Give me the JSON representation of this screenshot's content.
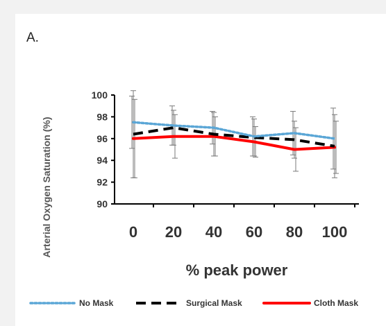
{
  "header_fragment": "",
  "panel_label": "A.",
  "chart_data": {
    "type": "line",
    "x": [
      0,
      20,
      40,
      60,
      80,
      100
    ],
    "xticks": [
      "0",
      "20",
      "40",
      "60",
      "80",
      "100"
    ],
    "yticks": [
      "90",
      "92",
      "94",
      "96",
      "98",
      "100"
    ],
    "xlabel": "% peak power",
    "ylabel": "Arterial Oxygen Saturation (%)",
    "ylim": [
      90,
      100
    ],
    "grid": false,
    "legend_position": "bottom",
    "series": [
      {
        "name": "No Mask",
        "color": "#5aa6d6",
        "style": "dotted",
        "values": [
          97.5,
          97.2,
          97.0,
          96.2,
          96.5,
          96.0
        ],
        "error": [
          2.4,
          1.8,
          1.5,
          1.8,
          2.0,
          2.8
        ]
      },
      {
        "name": "Surgical Mask",
        "color": "#000000",
        "style": "dashed",
        "values": [
          96.4,
          97.0,
          96.4,
          96.1,
          95.9,
          95.3
        ],
        "error": [
          4.0,
          1.6,
          2.0,
          1.7,
          1.7,
          2.9
        ]
      },
      {
        "name": "Cloth Mask",
        "color": "#ff0000",
        "style": "solid",
        "values": [
          96.0,
          96.2,
          96.2,
          95.7,
          95.0,
          95.2
        ],
        "error": [
          3.6,
          2.0,
          1.8,
          1.4,
          2.0,
          2.4
        ]
      }
    ]
  }
}
